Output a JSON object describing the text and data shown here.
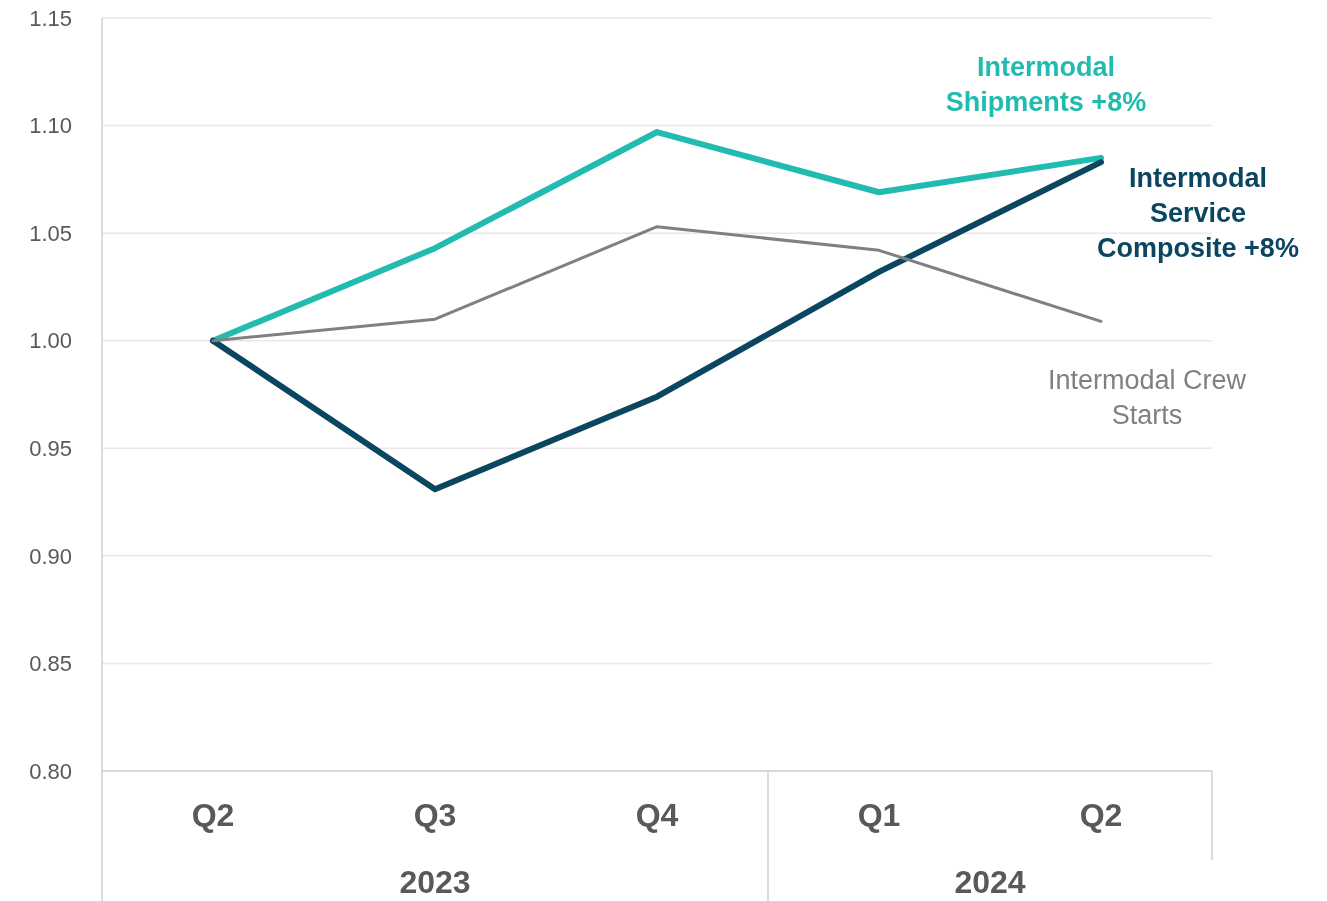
{
  "chart_data": {
    "type": "line",
    "categories": [
      "Q2",
      "Q3",
      "Q4",
      "Q1",
      "Q2"
    ],
    "series": [
      {
        "name": "Intermodal Shipments +8%",
        "color": "#22bbb0",
        "values": [
          1.0,
          1.043,
          1.097,
          1.069,
          1.085
        ]
      },
      {
        "name": "Intermodal Service Composite +8%",
        "color": "#0b4661",
        "values": [
          1.0,
          0.931,
          0.974,
          1.032,
          1.083
        ]
      },
      {
        "name": "Intermodal Crew Starts",
        "color": "#808080",
        "values": [
          1.0,
          1.01,
          1.053,
          1.042,
          1.009
        ]
      }
    ],
    "ylim": [
      0.8,
      1.15
    ],
    "yticks": [
      {
        "value": 0.8,
        "label": "0.80"
      },
      {
        "value": 0.85,
        "label": "0.85"
      },
      {
        "value": 0.9,
        "label": "0.90"
      },
      {
        "value": 0.95,
        "label": "0.95"
      },
      {
        "value": 1.0,
        "label": "1.00"
      },
      {
        "value": 1.05,
        "label": "1.05"
      },
      {
        "value": 1.1,
        "label": "1.10"
      },
      {
        "value": 1.15,
        "label": "1.15"
      }
    ],
    "grid": "y",
    "annotations": [
      "2023",
      "2024"
    ]
  }
}
